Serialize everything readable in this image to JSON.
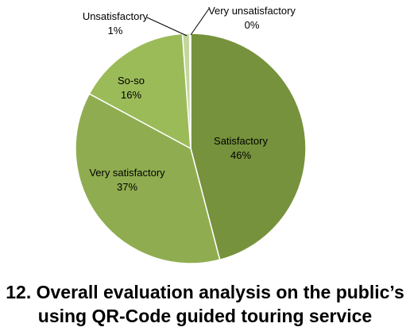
{
  "chart_data": {
    "type": "pie",
    "title": "",
    "slices": [
      {
        "label": "Satisfactory",
        "percent_label": "46%",
        "value": 46,
        "color": "#76923c"
      },
      {
        "label": "Very satisfactory",
        "percent_label": "37%",
        "value": 37,
        "color": "#8fad50"
      },
      {
        "label": "So-so",
        "percent_label": "16%",
        "value": 16,
        "color": "#9bbb59"
      },
      {
        "label": "Unsatisfactory",
        "percent_label": "1%",
        "value": 1,
        "color": "#c3d69b"
      },
      {
        "label": "Very unsatisfactory",
        "percent_label": "0%",
        "value": 0.15,
        "color": "#d7e4bd"
      }
    ],
    "start": "12 o'clock",
    "direction": "clockwise",
    "legend": "none",
    "slice_border_color": "#ffffff"
  },
  "caption": {
    "line1": "12. Overall evaluation analysis on the public’s",
    "line2": "using QR-Code guided touring service"
  }
}
